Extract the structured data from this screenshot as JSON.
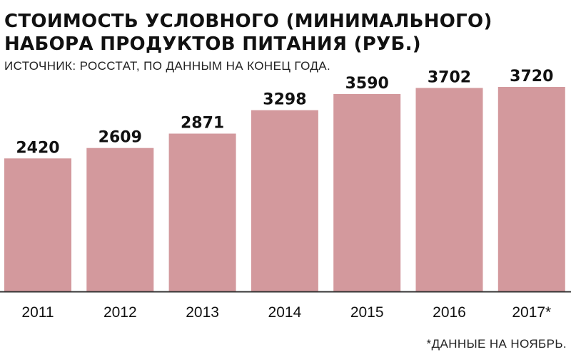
{
  "header": {
    "title_line1": "СТОИМОСТЬ УСЛОВНОГО (МИНИМАЛЬНОГО)",
    "title_line2": "НАБОРА ПРОДУКТОВ ПИТАНИЯ (РУБ.)",
    "source": "ИСТОЧНИК: РОССТАТ, ПО ДАННЫМ НА КОНЕЦ ГОДА."
  },
  "footnote": "*ДАННЫЕ НА НОЯБРЬ.",
  "colors": {
    "bar": "#d3999d",
    "baseline": "#333333",
    "text": "#111111"
  },
  "chart_data": {
    "type": "bar",
    "title": "СТОИМОСТЬ УСЛОВНОГО (МИНИМАЛЬНОГО) НАБОРА ПРОДУКТОВ ПИТАНИЯ (РУБ.)",
    "categories": [
      "2011",
      "2012",
      "2013",
      "2014",
      "2015",
      "2016",
      "2017*"
    ],
    "values": [
      2420,
      2609,
      2871,
      3298,
      3590,
      3702,
      3720
    ],
    "ylim": [
      0,
      3720
    ],
    "grid": false,
    "legend": "none",
    "xlabel": "",
    "ylabel": ""
  }
}
